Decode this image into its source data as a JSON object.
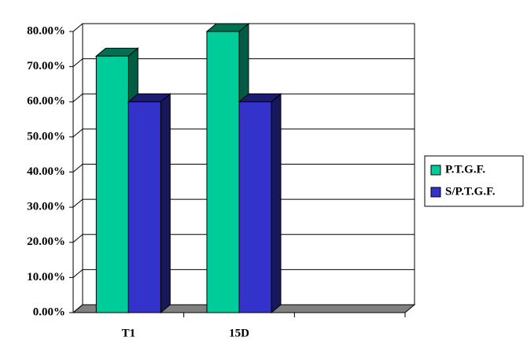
{
  "chart_data": {
    "type": "bar3d",
    "categories": [
      "T1",
      "15D",
      null
    ],
    "series": [
      {
        "name": "P.T.G.F.",
        "color": "#00cc99",
        "values": [
          73,
          80,
          null
        ]
      },
      {
        "name": "S/P.T.G.F.",
        "color": "#3333cc",
        "values": [
          60,
          60,
          null
        ]
      }
    ],
    "ylim": [
      0,
      80
    ],
    "yticks": [
      {
        "value": 0,
        "label": "0.00%"
      },
      {
        "value": 10,
        "label": "10.00%"
      },
      {
        "value": 20,
        "label": "20.00%"
      },
      {
        "value": 30,
        "label": "30.00%"
      },
      {
        "value": 40,
        "label": "40.00%"
      },
      {
        "value": 50,
        "label": "50.00%"
      },
      {
        "value": 60,
        "label": "60.00%"
      },
      {
        "value": 70,
        "label": "70.00%"
      },
      {
        "value": 80,
        "label": "80.00%"
      }
    ],
    "grid": true,
    "legend": "right"
  }
}
